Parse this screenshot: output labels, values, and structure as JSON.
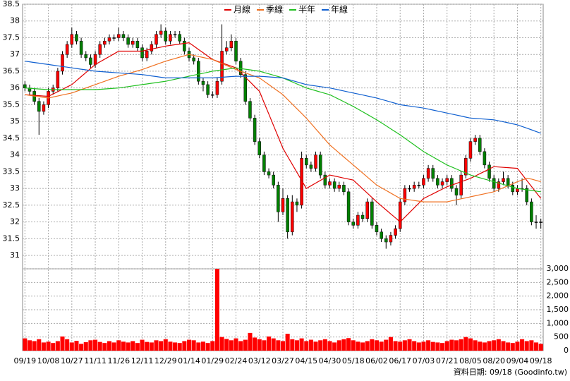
{
  "chart_data": {
    "type": "candlestick",
    "categories": [
      "09/19",
      null,
      null,
      null,
      null,
      "10/08",
      null,
      null,
      null,
      null,
      "10/27",
      null,
      null,
      null,
      null,
      "11/11",
      null,
      null,
      null,
      null,
      "11/26",
      null,
      null,
      null,
      null,
      "12/11",
      null,
      null,
      null,
      null,
      "12/29",
      null,
      null,
      null,
      null,
      "01/14",
      null,
      null,
      null,
      null,
      "01/29",
      null,
      null,
      null,
      null,
      "02/24",
      null,
      null,
      null,
      null,
      "03/12",
      null,
      null,
      null,
      null,
      "03/27",
      null,
      null,
      null,
      null,
      "04/15",
      null,
      null,
      null,
      null,
      "04/30",
      null,
      null,
      null,
      null,
      "05/18",
      null,
      null,
      null,
      null,
      "06/02",
      null,
      null,
      null,
      null,
      "06/17",
      null,
      null,
      null,
      null,
      "07/03",
      null,
      null,
      null,
      null,
      "07/21",
      null,
      null,
      null,
      null,
      "08/05",
      null,
      null,
      null,
      null,
      "08/20",
      null,
      null,
      null,
      null,
      "09/04",
      null,
      null,
      null,
      null,
      "09/18"
    ],
    "open": [
      36.1,
      36.0,
      35.9,
      35.6,
      35.3,
      35.5,
      35.9,
      36.0,
      36.5,
      37.0,
      37.3,
      37.6,
      37.4,
      37.0,
      36.9,
      36.7,
      37.0,
      37.3,
      37.4,
      37.5,
      37.5,
      37.6,
      37.5,
      37.3,
      37.4,
      37.2,
      36.9,
      37.1,
      37.3,
      37.6,
      37.7,
      37.4,
      37.6,
      37.6,
      37.4,
      37.1,
      36.9,
      36.8,
      36.2,
      36.1,
      35.8,
      35.8,
      36.2,
      37.1,
      37.2,
      37.4,
      36.8,
      36.4,
      35.6,
      35.1,
      34.4,
      34.0,
      33.5,
      33.4,
      33.1,
      32.3,
      32.7,
      31.7,
      32.6,
      32.5,
      33.9,
      33.7,
      33.6,
      34.0,
      33.4,
      33.1,
      33.2,
      33.0,
      33.1,
      32.9,
      32.0,
      31.9,
      32.2,
      32.1,
      32.6,
      31.9,
      31.7,
      31.5,
      31.4,
      31.6,
      31.8,
      32.6,
      33.0,
      33.0,
      33.1,
      33.1,
      33.3,
      33.6,
      33.3,
      33.1,
      33.2,
      33.3,
      33.0,
      32.8,
      33.4,
      33.9,
      34.4,
      34.5,
      34.1,
      33.7,
      33.3,
      33.0,
      33.2,
      33.3,
      33.1,
      32.9,
      33.0,
      33.0,
      32.6,
      32.0,
      32.0
    ],
    "high": [
      36.2,
      36.1,
      36.0,
      35.7,
      35.6,
      36.0,
      36.1,
      36.6,
      37.1,
      37.4,
      37.8,
      37.7,
      37.5,
      37.1,
      37.0,
      37.1,
      37.4,
      37.5,
      37.6,
      37.6,
      37.8,
      37.7,
      37.6,
      37.5,
      37.5,
      37.3,
      37.2,
      37.4,
      37.7,
      37.9,
      37.8,
      37.7,
      37.7,
      37.7,
      37.5,
      37.2,
      37.0,
      36.9,
      36.3,
      36.2,
      35.9,
      36.3,
      37.9,
      37.4,
      37.6,
      37.5,
      36.9,
      36.5,
      35.7,
      35.2,
      34.5,
      34.1,
      33.6,
      33.5,
      33.2,
      33.0,
      32.8,
      32.8,
      32.7,
      34.1,
      34.0,
      33.8,
      34.1,
      34.1,
      33.5,
      33.3,
      33.3,
      33.2,
      33.2,
      33.0,
      32.1,
      32.3,
      32.3,
      32.7,
      32.7,
      32.0,
      31.8,
      31.6,
      31.7,
      31.9,
      32.7,
      33.1,
      33.1,
      33.2,
      33.2,
      33.4,
      33.7,
      33.7,
      33.4,
      33.3,
      33.4,
      33.4,
      33.1,
      33.5,
      34.0,
      34.5,
      34.6,
      34.6,
      34.2,
      33.8,
      33.4,
      33.3,
      33.5,
      33.4,
      33.2,
      33.1,
      33.3,
      33.1,
      32.7,
      32.2,
      32.1
    ],
    "low": [
      35.9,
      35.8,
      35.5,
      34.6,
      35.2,
      35.4,
      35.8,
      35.9,
      36.4,
      36.9,
      37.2,
      37.3,
      36.9,
      36.8,
      36.6,
      36.6,
      36.9,
      37.2,
      37.3,
      37.4,
      37.4,
      37.4,
      37.2,
      37.2,
      37.1,
      36.8,
      36.8,
      37.0,
      37.2,
      37.5,
      37.3,
      37.3,
      37.5,
      37.3,
      37.0,
      36.8,
      36.7,
      36.1,
      35.9,
      35.7,
      35.7,
      35.7,
      36.1,
      37.0,
      37.1,
      36.7,
      36.3,
      35.5,
      35.0,
      34.3,
      33.9,
      33.4,
      33.3,
      33.0,
      32.0,
      32.2,
      31.5,
      31.6,
      32.3,
      32.4,
      33.6,
      33.5,
      33.5,
      33.3,
      33.0,
      33.0,
      32.9,
      32.9,
      32.8,
      31.9,
      31.8,
      31.8,
      32.0,
      32.0,
      31.8,
      31.6,
      31.4,
      31.2,
      31.3,
      31.5,
      31.7,
      32.5,
      32.9,
      32.9,
      33.0,
      33.0,
      33.2,
      33.2,
      33.0,
      33.0,
      33.1,
      32.9,
      32.5,
      32.7,
      33.3,
      33.8,
      34.3,
      34.0,
      33.6,
      33.2,
      32.9,
      32.9,
      33.1,
      33.0,
      32.8,
      32.8,
      32.9,
      32.5,
      31.9,
      31.8,
      31.8
    ],
    "close": [
      36.0,
      35.9,
      35.6,
      35.3,
      35.5,
      35.9,
      36.0,
      36.5,
      37.0,
      37.3,
      37.6,
      37.4,
      37.0,
      36.9,
      36.7,
      37.0,
      37.3,
      37.4,
      37.5,
      37.5,
      37.6,
      37.5,
      37.3,
      37.4,
      37.2,
      36.9,
      37.1,
      37.3,
      37.6,
      37.7,
      37.4,
      37.6,
      37.6,
      37.4,
      37.1,
      36.9,
      36.8,
      36.2,
      36.1,
      35.8,
      35.8,
      36.2,
      37.1,
      37.2,
      37.4,
      36.8,
      36.4,
      35.6,
      35.1,
      34.4,
      34.0,
      33.5,
      33.4,
      33.1,
      32.3,
      32.7,
      31.7,
      32.6,
      32.5,
      33.9,
      33.7,
      33.6,
      34.0,
      33.4,
      33.1,
      33.2,
      33.0,
      33.1,
      32.9,
      32.0,
      31.9,
      32.2,
      32.1,
      32.6,
      31.9,
      31.7,
      31.5,
      31.4,
      31.6,
      31.8,
      32.6,
      33.0,
      33.0,
      33.1,
      33.1,
      33.3,
      33.6,
      33.3,
      33.1,
      33.2,
      33.3,
      33.0,
      32.8,
      33.4,
      33.9,
      34.4,
      34.5,
      34.1,
      33.7,
      33.3,
      33.0,
      33.2,
      33.3,
      33.1,
      32.9,
      33.0,
      33.0,
      32.6,
      32.0,
      32.0,
      32.0
    ],
    "up_color": "#ff0000",
    "down_color": "#008000",
    "flat_color": "#000000",
    "ylim": [
      30.6,
      38.5
    ],
    "yticks": [
      31,
      31.5,
      32,
      32.5,
      33,
      33.5,
      34,
      34.5,
      35,
      35.5,
      36,
      36.5,
      37,
      37.5,
      38,
      38.5
    ],
    "grid": true,
    "series": [
      {
        "name": "月線",
        "color": "#e00000",
        "values": [
          35.8,
          35.79,
          35.78,
          35.77,
          35.76,
          35.75,
          35.82,
          35.89,
          35.96,
          36.03,
          36.1,
          36.22,
          36.34,
          36.46,
          36.58,
          36.7,
          36.78,
          36.86,
          36.94,
          37.02,
          37.1,
          37.1,
          37.1,
          37.1,
          37.1,
          37.1,
          37.13,
          37.16,
          37.19,
          37.22,
          37.25,
          37.27,
          37.29,
          37.31,
          37.33,
          37.35,
          37.25,
          37.15,
          37.05,
          36.95,
          36.85,
          36.8,
          36.75,
          36.7,
          36.65,
          36.6,
          36.46,
          36.32,
          36.18,
          36.04,
          35.9,
          35.56,
          35.22,
          34.88,
          34.54,
          34.2,
          33.96,
          33.72,
          33.48,
          33.24,
          33.0,
          33.08,
          33.16,
          33.24,
          33.32,
          33.4,
          33.37,
          33.34,
          33.31,
          33.28,
          33.25,
          33.12,
          32.99,
          32.86,
          32.73,
          32.6,
          32.48,
          32.36,
          32.24,
          32.12,
          32.0,
          32.14,
          32.28,
          32.42,
          32.56,
          32.7,
          32.77,
          32.84,
          32.91,
          32.98,
          33.05,
          33.1,
          33.15,
          33.2,
          33.25,
          33.3,
          33.37,
          33.44,
          33.51,
          33.58,
          33.65,
          33.64,
          33.63,
          33.62,
          33.61,
          33.6,
          33.42,
          33.24,
          33.06,
          32.88,
          32.7
        ]
      },
      {
        "name": "季線",
        "color": "#f07020",
        "values": [
          35.8,
          35.78,
          35.76,
          35.74,
          35.72,
          35.7,
          35.73,
          35.76,
          35.79,
          35.82,
          35.85,
          35.9,
          35.95,
          36.0,
          36.05,
          36.1,
          36.15,
          36.2,
          36.25,
          36.3,
          36.35,
          36.39,
          36.43,
          36.47,
          36.51,
          36.55,
          36.6,
          36.65,
          36.7,
          36.75,
          36.8,
          36.84,
          36.88,
          36.92,
          36.96,
          37.0,
          36.97,
          36.94,
          36.91,
          36.88,
          36.85,
          36.79,
          36.73,
          36.67,
          36.61,
          36.55,
          36.5,
          36.45,
          36.4,
          36.35,
          36.3,
          36.2,
          36.1,
          36.0,
          35.9,
          35.8,
          35.66,
          35.52,
          35.38,
          35.24,
          35.1,
          34.94,
          34.78,
          34.62,
          34.46,
          34.3,
          34.18,
          34.06,
          33.94,
          33.82,
          33.7,
          33.58,
          33.46,
          33.34,
          33.22,
          33.1,
          33.02,
          32.94,
          32.86,
          32.78,
          32.7,
          32.68,
          32.66,
          32.64,
          32.62,
          32.6,
          32.6,
          32.6,
          32.6,
          32.6,
          32.6,
          32.63,
          32.66,
          32.69,
          32.72,
          32.75,
          32.78,
          32.81,
          32.84,
          32.87,
          32.9,
          32.96,
          33.02,
          33.08,
          33.14,
          33.2,
          33.25,
          33.3,
          33.28,
          33.24,
          33.2
        ]
      },
      {
        "name": "半年",
        "color": "#20c020",
        "values": [
          36.0,
          35.99,
          35.98,
          35.97,
          35.96,
          35.95,
          35.95,
          35.95,
          35.95,
          35.95,
          35.95,
          35.95,
          35.95,
          35.95,
          35.95,
          35.95,
          35.96,
          35.97,
          35.98,
          35.99,
          36.0,
          36.02,
          36.04,
          36.06,
          36.08,
          36.1,
          36.12,
          36.14,
          36.16,
          36.18,
          36.2,
          36.23,
          36.26,
          36.29,
          36.32,
          36.35,
          36.38,
          36.41,
          36.44,
          36.47,
          36.5,
          36.52,
          36.54,
          36.56,
          36.58,
          36.6,
          36.58,
          36.56,
          36.54,
          36.52,
          36.5,
          36.46,
          36.42,
          36.38,
          36.34,
          36.3,
          36.24,
          36.18,
          36.12,
          36.06,
          36.0,
          35.96,
          35.92,
          35.88,
          35.84,
          35.8,
          35.73,
          35.66,
          35.59,
          35.52,
          35.45,
          35.37,
          35.29,
          35.21,
          35.13,
          35.05,
          34.96,
          34.87,
          34.78,
          34.69,
          34.6,
          34.5,
          34.4,
          34.3,
          34.2,
          34.1,
          34.02,
          33.94,
          33.86,
          33.78,
          33.7,
          33.64,
          33.58,
          33.52,
          33.46,
          33.4,
          33.36,
          33.32,
          33.28,
          33.24,
          33.2,
          33.16,
          33.12,
          33.08,
          33.04,
          33.0,
          32.98,
          32.96,
          32.94,
          32.92,
          32.9
        ]
      },
      {
        "name": "年線",
        "color": "#1060d0",
        "values": [
          36.8,
          36.78,
          36.76,
          36.74,
          36.72,
          36.7,
          36.68,
          36.66,
          36.64,
          36.62,
          36.6,
          36.58,
          36.56,
          36.54,
          36.52,
          36.5,
          36.49,
          36.48,
          36.47,
          36.46,
          36.45,
          36.44,
          36.43,
          36.42,
          36.41,
          36.4,
          36.38,
          36.36,
          36.34,
          36.32,
          36.3,
          36.3,
          36.3,
          36.3,
          36.3,
          36.3,
          36.3,
          36.3,
          36.3,
          36.3,
          36.3,
          36.31,
          36.32,
          36.33,
          36.34,
          36.35,
          36.35,
          36.35,
          36.35,
          36.35,
          36.35,
          36.34,
          36.33,
          36.32,
          36.31,
          36.3,
          36.26,
          36.22,
          36.18,
          36.14,
          36.1,
          36.08,
          36.06,
          36.04,
          36.02,
          36.0,
          35.97,
          35.94,
          35.91,
          35.88,
          35.85,
          35.82,
          35.79,
          35.76,
          35.73,
          35.7,
          35.66,
          35.62,
          35.58,
          35.54,
          35.5,
          35.48,
          35.46,
          35.44,
          35.42,
          35.4,
          35.37,
          35.34,
          35.31,
          35.28,
          35.25,
          35.22,
          35.19,
          35.16,
          35.13,
          35.1,
          35.09,
          35.08,
          35.07,
          35.06,
          35.05,
          35.02,
          34.99,
          34.96,
          34.93,
          34.9,
          34.85,
          34.8,
          34.75,
          34.7,
          34.65
        ]
      }
    ],
    "volume": {
      "color": "#ff0000",
      "ylim": [
        0,
        3000
      ],
      "yticks": [
        0,
        500,
        {
          "value": 1000,
          "label": "1,000"
        },
        {
          "value": 1500,
          "label": "1,500"
        },
        {
          "value": 2000,
          "label": "2,000"
        },
        {
          "value": 2500,
          "label": "2,500"
        },
        {
          "value": 3000,
          "label": "3,000"
        }
      ],
      "values": [
        450,
        380,
        350,
        420,
        300,
        330,
        280,
        350,
        520,
        420,
        300,
        360,
        250,
        310,
        380,
        400,
        320,
        280,
        350,
        300,
        380,
        330,
        300,
        350,
        280,
        400,
        320,
        300,
        380,
        350,
        420,
        330,
        300,
        280,
        350,
        400,
        380,
        300,
        330,
        280,
        350,
        3000,
        500,
        430,
        380,
        450,
        350,
        400,
        650,
        480,
        420,
        380,
        520,
        450,
        380,
        350,
        620,
        420,
        380,
        450,
        350,
        400,
        330,
        380,
        420,
        350,
        300,
        380,
        420,
        460,
        380,
        330,
        300,
        350,
        420,
        380,
        330,
        400,
        500,
        350,
        330,
        380,
        420,
        350,
        300,
        330,
        380,
        320,
        300,
        280,
        350,
        400,
        380,
        420,
        500,
        450,
        380,
        330,
        300,
        350,
        380,
        420,
        350,
        300,
        280,
        330,
        420,
        350,
        380,
        300,
        250
      ]
    },
    "footer": "資料日期: 09/18 (Goodinfo.tw)"
  }
}
